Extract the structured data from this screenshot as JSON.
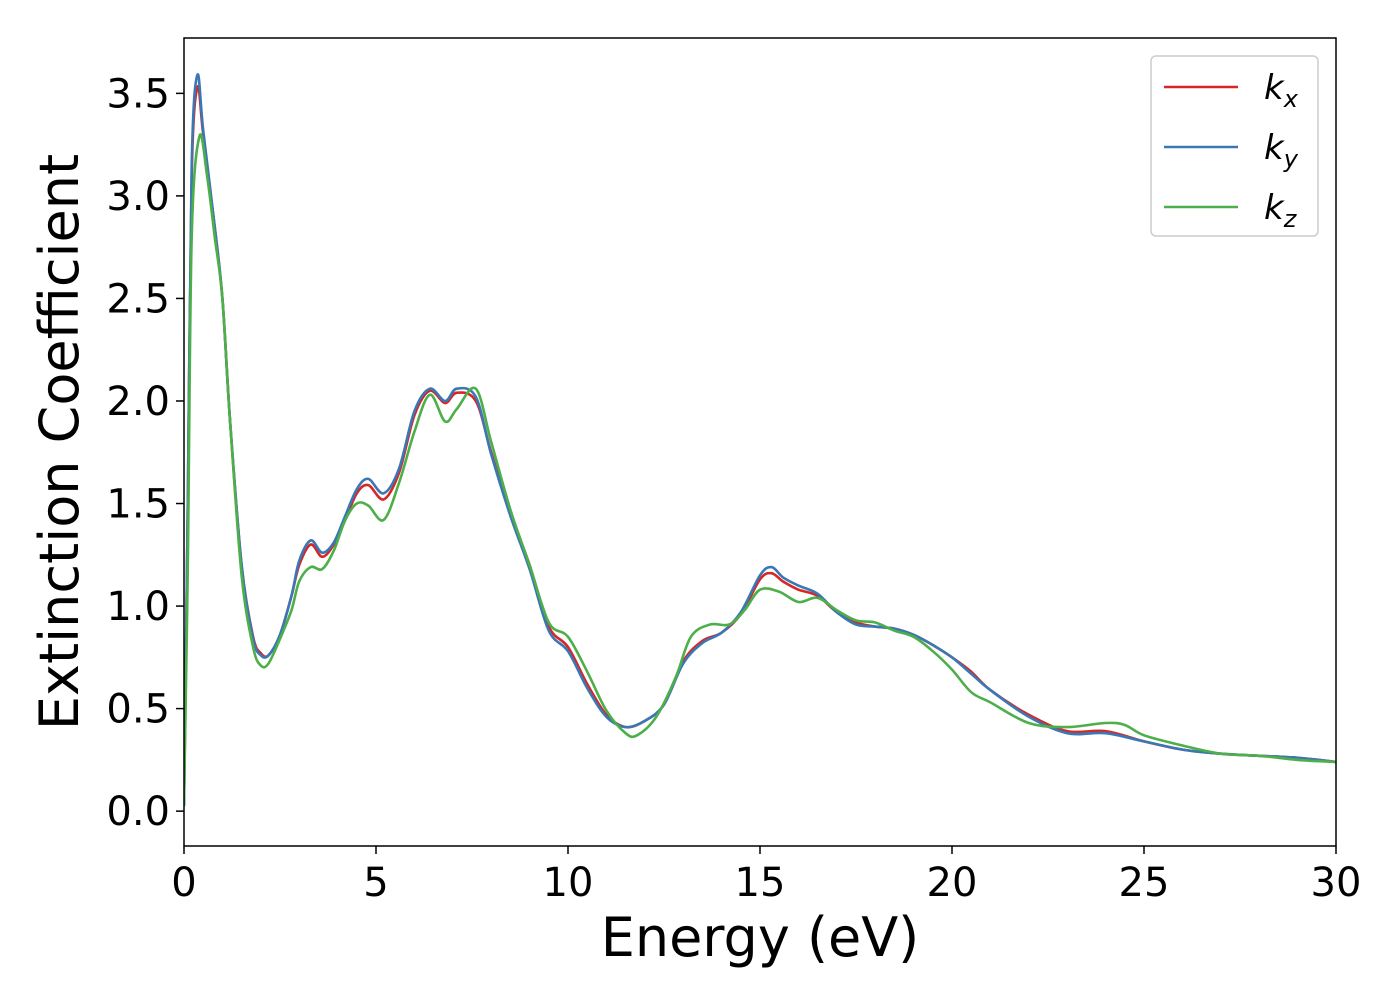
{
  "chart_data": {
    "type": "line",
    "xlabel": "Energy (eV)",
    "ylabel": "Extinction Coefficient",
    "xlim": [
      0,
      30
    ],
    "ylim": [
      -0.17,
      3.77
    ],
    "xticks": [
      0,
      5,
      10,
      15,
      20,
      25,
      30
    ],
    "xtick_labels": [
      "0",
      "5",
      "10",
      "15",
      "20",
      "25",
      "30"
    ],
    "yticks": [
      0.0,
      0.5,
      1.0,
      1.5,
      2.0,
      2.5,
      3.0,
      3.5
    ],
    "ytick_labels": [
      "0.0",
      "0.5",
      "1.0",
      "1.5",
      "2.0",
      "2.5",
      "3.0",
      "3.5"
    ],
    "grid": false,
    "legend_position": "top-right",
    "series": [
      {
        "name": "k",
        "subscript": "x",
        "color": "#d62728",
        "x": [
          0,
          0.1,
          0.2,
          0.35,
          0.5,
          0.8,
          1.0,
          1.2,
          1.5,
          1.8,
          2.0,
          2.2,
          2.5,
          2.8,
          3.0,
          3.3,
          3.6,
          3.9,
          4.2,
          4.5,
          4.8,
          5.2,
          5.6,
          6.0,
          6.4,
          6.8,
          7.1,
          7.6,
          8.0,
          8.5,
          9.0,
          9.5,
          10.0,
          10.5,
          11.0,
          11.5,
          12.0,
          12.5,
          13.0,
          13.5,
          14.0,
          14.5,
          15.0,
          15.3,
          15.6,
          16.0,
          16.5,
          17.0,
          17.5,
          18.0,
          18.5,
          19.0,
          19.5,
          20.0,
          20.5,
          21.0,
          22.0,
          23.0,
          24.0,
          25.0,
          26.0,
          27.0,
          28.0,
          29.0,
          30.0
        ],
        "values": [
          0.03,
          1.5,
          3.1,
          3.53,
          3.3,
          2.85,
          2.5,
          1.9,
          1.2,
          0.85,
          0.77,
          0.76,
          0.86,
          1.05,
          1.2,
          1.3,
          1.24,
          1.3,
          1.42,
          1.55,
          1.59,
          1.52,
          1.65,
          1.93,
          2.05,
          1.99,
          2.04,
          2.0,
          1.75,
          1.45,
          1.2,
          0.9,
          0.8,
          0.62,
          0.47,
          0.41,
          0.44,
          0.52,
          0.73,
          0.83,
          0.87,
          0.96,
          1.13,
          1.16,
          1.12,
          1.08,
          1.05,
          0.97,
          0.92,
          0.9,
          0.89,
          0.86,
          0.81,
          0.75,
          0.68,
          0.59,
          0.47,
          0.39,
          0.39,
          0.34,
          0.3,
          0.28,
          0.27,
          0.26,
          0.24
        ]
      },
      {
        "name": "k",
        "subscript": "y",
        "color": "#3a78b5",
        "x": [
          0,
          0.1,
          0.2,
          0.35,
          0.5,
          0.8,
          1.0,
          1.2,
          1.5,
          1.8,
          2.0,
          2.2,
          2.5,
          2.8,
          3.0,
          3.3,
          3.6,
          3.9,
          4.2,
          4.5,
          4.8,
          5.2,
          5.6,
          6.0,
          6.4,
          6.8,
          7.1,
          7.6,
          8.0,
          8.5,
          9.0,
          9.5,
          10.0,
          10.5,
          11.0,
          11.5,
          12.0,
          12.5,
          13.0,
          13.5,
          14.0,
          14.5,
          15.0,
          15.3,
          15.6,
          16.0,
          16.5,
          17.0,
          17.5,
          18.0,
          18.5,
          19.0,
          19.5,
          20.0,
          20.5,
          21.0,
          22.0,
          23.0,
          24.0,
          25.0,
          26.0,
          27.0,
          28.0,
          29.0,
          30.0
        ],
        "values": [
          0.03,
          1.5,
          3.15,
          3.59,
          3.32,
          2.85,
          2.5,
          1.9,
          1.2,
          0.84,
          0.76,
          0.76,
          0.86,
          1.05,
          1.22,
          1.32,
          1.26,
          1.31,
          1.44,
          1.57,
          1.62,
          1.55,
          1.67,
          1.95,
          2.06,
          2.0,
          2.06,
          2.02,
          1.74,
          1.44,
          1.18,
          0.88,
          0.78,
          0.6,
          0.46,
          0.41,
          0.44,
          0.52,
          0.72,
          0.82,
          0.87,
          0.97,
          1.15,
          1.19,
          1.14,
          1.1,
          1.06,
          0.97,
          0.91,
          0.9,
          0.89,
          0.86,
          0.81,
          0.75,
          0.67,
          0.59,
          0.46,
          0.38,
          0.38,
          0.34,
          0.3,
          0.28,
          0.27,
          0.26,
          0.24
        ]
      },
      {
        "name": "k",
        "subscript": "z",
        "color": "#4daf4a",
        "x": [
          0,
          0.1,
          0.2,
          0.4,
          0.6,
          0.8,
          1.0,
          1.2,
          1.5,
          1.8,
          2.0,
          2.2,
          2.5,
          2.8,
          3.0,
          3.3,
          3.6,
          3.9,
          4.2,
          4.5,
          4.8,
          5.2,
          5.6,
          6.0,
          6.4,
          6.8,
          7.1,
          7.6,
          8.0,
          8.5,
          9.0,
          9.5,
          10.0,
          10.5,
          11.0,
          11.5,
          11.8,
          12.3,
          12.8,
          13.2,
          13.7,
          14.2,
          14.6,
          15.0,
          15.5,
          16.0,
          16.5,
          17.0,
          17.5,
          18.0,
          18.5,
          19.0,
          19.5,
          20.0,
          20.5,
          21.0,
          22.0,
          23.0,
          24.0,
          24.5,
          25.0,
          26.0,
          27.0,
          28.0,
          29.0,
          30.0
        ],
        "values": [
          0.03,
          1.2,
          2.8,
          3.29,
          3.1,
          2.8,
          2.5,
          1.9,
          1.15,
          0.8,
          0.71,
          0.72,
          0.84,
          0.98,
          1.12,
          1.19,
          1.18,
          1.27,
          1.42,
          1.5,
          1.49,
          1.42,
          1.6,
          1.85,
          2.03,
          1.9,
          1.96,
          2.06,
          1.8,
          1.47,
          1.2,
          0.92,
          0.85,
          0.68,
          0.49,
          0.38,
          0.37,
          0.46,
          0.65,
          0.85,
          0.91,
          0.91,
          0.98,
          1.08,
          1.07,
          1.02,
          1.04,
          0.98,
          0.93,
          0.92,
          0.88,
          0.85,
          0.78,
          0.69,
          0.58,
          0.53,
          0.43,
          0.41,
          0.43,
          0.42,
          0.37,
          0.32,
          0.28,
          0.27,
          0.25,
          0.24
        ]
      }
    ]
  }
}
